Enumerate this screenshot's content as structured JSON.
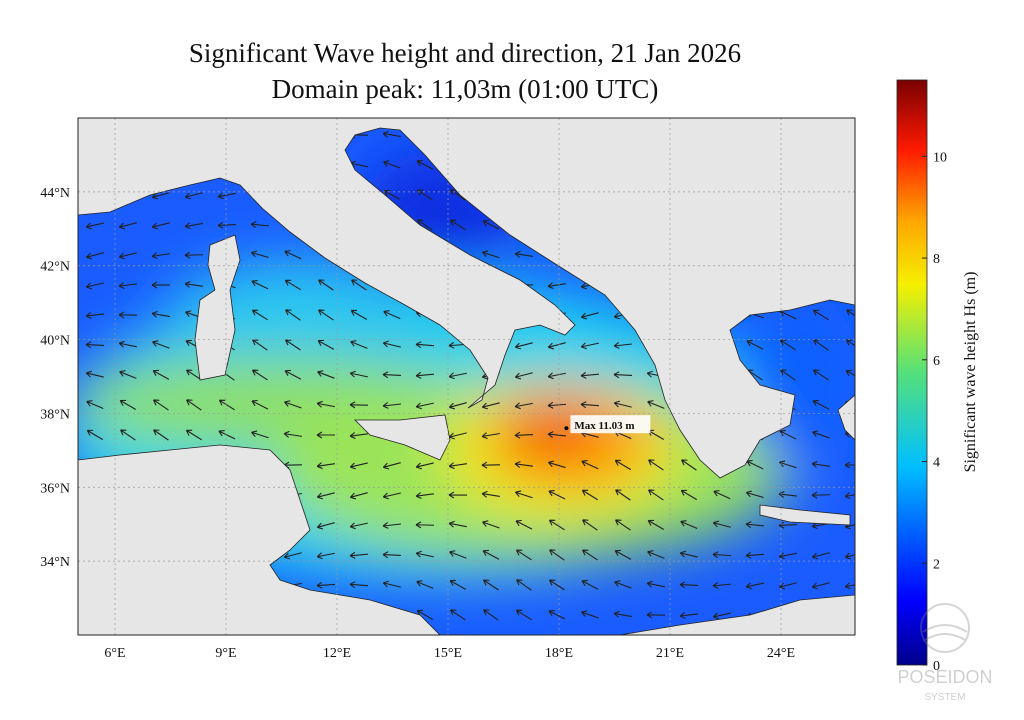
{
  "title": [
    "Significant Wave height and direction, 21 Jan 2026",
    "Domain peak: 11,03m (01:00 UTC)"
  ],
  "map": {
    "xlim": [
      5,
      26
    ],
    "ylim": [
      32,
      46
    ],
    "xticks": [
      {
        "value": 6,
        "label": "6°E"
      },
      {
        "value": 9,
        "label": "9°E"
      },
      {
        "value": 12,
        "label": "12°E"
      },
      {
        "value": 15,
        "label": "15°E"
      },
      {
        "value": 18,
        "label": "18°E"
      },
      {
        "value": 21,
        "label": "21°E"
      },
      {
        "value": 24,
        "label": "24°E"
      }
    ],
    "yticks": [
      {
        "value": 34,
        "label": "34°N"
      },
      {
        "value": 36,
        "label": "36°N"
      },
      {
        "value": 38,
        "label": "38°N"
      },
      {
        "value": 40,
        "label": "40°N"
      },
      {
        "value": 42,
        "label": "42°N"
      },
      {
        "value": 44,
        "label": "44°N"
      }
    ],
    "max_marker": {
      "label": "Max 11.03 m",
      "lon": 18.2,
      "lat": 37.6
    }
  },
  "colorbar": {
    "label": "Significant wave height Hs (m)",
    "lim": [
      0,
      11.5
    ],
    "ticks": [
      0,
      2,
      4,
      6,
      8,
      10
    ]
  },
  "logo": {
    "name": "POSEIDON",
    "subtitle": "SYSTEM"
  }
}
